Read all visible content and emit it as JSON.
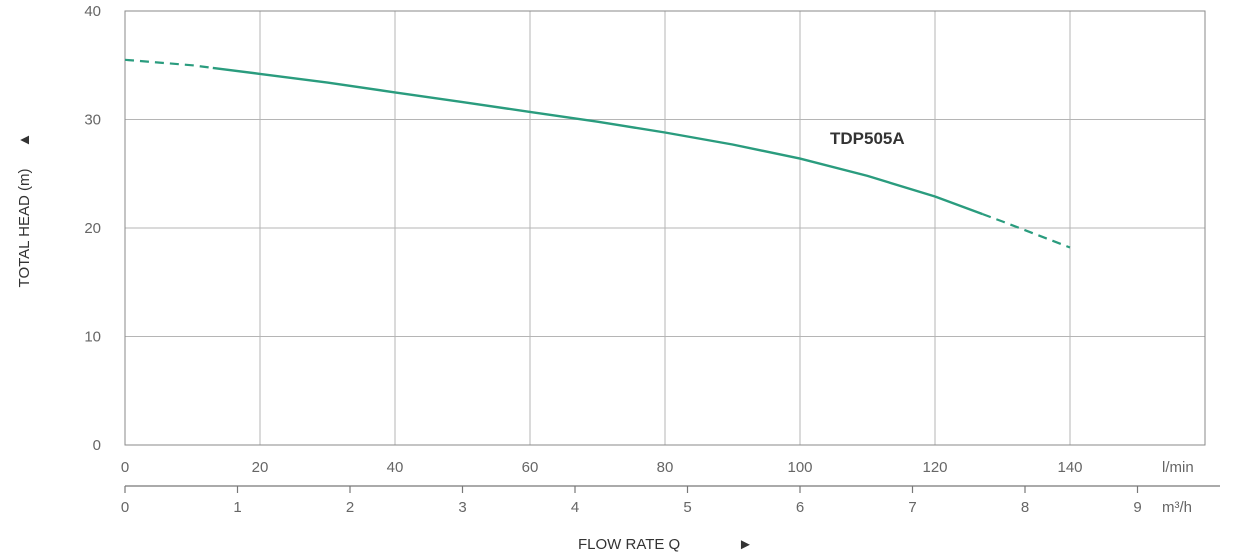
{
  "chart_data": {
    "type": "line",
    "series": [
      {
        "name": "TDP505A",
        "color": "#2a9c7e",
        "x": [
          0,
          10,
          20,
          30,
          40,
          50,
          60,
          70,
          80,
          90,
          100,
          110,
          120,
          130,
          140
        ],
        "y": [
          35.5,
          35.0,
          34.2,
          33.4,
          32.5,
          31.6,
          30.7,
          29.8,
          28.8,
          27.7,
          26.4,
          24.8,
          22.9,
          20.6,
          18.2
        ],
        "solid_range": [
          13,
          127
        ]
      }
    ],
    "x_primary": {
      "unit": "l/min",
      "ticks": [
        "0",
        "20",
        "40",
        "60",
        "80",
        "100",
        "120",
        "140"
      ],
      "range": [
        0,
        160
      ]
    },
    "x_secondary": {
      "unit": "m³/h",
      "ticks": [
        "0",
        "1",
        "2",
        "3",
        "4",
        "5",
        "6",
        "7",
        "8",
        "9"
      ],
      "range": [
        0,
        9.6
      ]
    },
    "y_axis": {
      "ticks": [
        "0",
        "10",
        "20",
        "30",
        "40"
      ],
      "range": [
        0,
        40
      ]
    },
    "xlabel": "FLOW RATE Q",
    "ylabel": "TOTAL HEAD (m)",
    "grid": true,
    "arrow_glyph": "▲",
    "xlabel_arrow_glyph": "►"
  }
}
